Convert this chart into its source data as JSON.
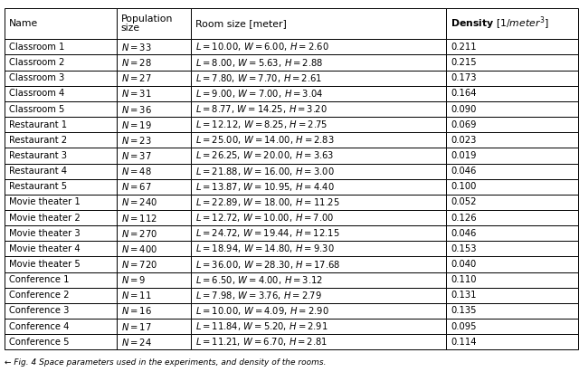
{
  "rows": [
    [
      "Classroom 1",
      "N = 33",
      "L = 10.00, W = 6.00, H = 2.60",
      "0.211"
    ],
    [
      "Classroom 2",
      "N = 28",
      "L = 8.00, W = 5.63, H = 2.88",
      "0.215"
    ],
    [
      "Classroom 3",
      "N = 27",
      "L = 7.80, W = 7.70, H = 2.61",
      "0.173"
    ],
    [
      "Classroom 4",
      "N = 31",
      "L = 9.00, W = 7.00, H = 3.04",
      "0.164"
    ],
    [
      "Classroom 5",
      "N = 36",
      "L = 8.77, W = 14.25, H = 3.20",
      "0.090"
    ],
    [
      "Restaurant 1",
      "N = 19",
      "L = 12.12, W = 8.25, H = 2.75",
      "0.069"
    ],
    [
      "Restaurant 2",
      "N = 23",
      "L = 25.00, W = 14.00, H = 2.83",
      "0.023"
    ],
    [
      "Restaurant 3",
      "N = 37",
      "L = 26.25, W = 20.00, H = 3.63",
      "0.019"
    ],
    [
      "Restaurant 4",
      "N = 48",
      "L = 21.88, W = 16.00, H = 3.00",
      "0.046"
    ],
    [
      "Restaurant 5",
      "N = 67",
      "L = 13.87, W = 10.95, H = 4.40",
      "0.100"
    ],
    [
      "Movie theater 1",
      "N = 240",
      "L = 22.89, W = 18.00, H = 11.25",
      "0.052"
    ],
    [
      "Movie theater 2",
      "N = 112",
      "L = 12.72, W = 10.00, H = 7.00",
      "0.126"
    ],
    [
      "Movie theater 3",
      "N = 270",
      "L = 24.72, W = 19.44, H = 12.15",
      "0.046"
    ],
    [
      "Movie theater 4",
      "N = 400",
      "L = 18.94, W = 14.80, H = 9.30",
      "0.153"
    ],
    [
      "Movie theater 5",
      "N = 720",
      "L = 36.00, W = 28.30, H = 17.68",
      "0.040"
    ],
    [
      "Conference 1",
      "N = 9",
      "L = 6.50, W = 4.00, H = 3.12",
      "0.110"
    ],
    [
      "Conference 2",
      "N = 11",
      "L = 7.98, W = 3.76, H = 2.79",
      "0.131"
    ],
    [
      "Conference 3",
      "N = 16",
      "L = 10.00, W = 4.09, H = 2.90",
      "0.135"
    ],
    [
      "Conference 4",
      "N = 17",
      "L = 11.84, W = 5.20, H = 2.91",
      "0.095"
    ],
    [
      "Conference 5",
      "N = 24",
      "L = 11.21, W = 6.70, H = 2.81",
      "0.114"
    ]
  ],
  "figsize": [
    6.4,
    4.11
  ],
  "dpi": 100,
  "font_size": 7.2,
  "header_font_size": 7.8,
  "caption": "Fig. 4 Space parameters used in the experiments, and density of the rooms.",
  "caption_arrow": "← "
}
